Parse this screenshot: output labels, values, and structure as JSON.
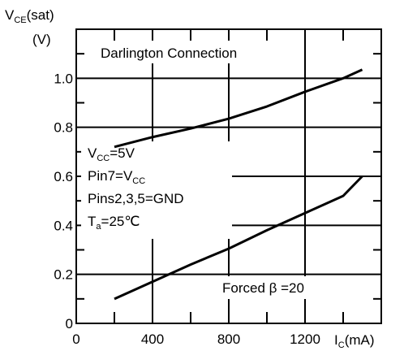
{
  "chart_data": {
    "type": "line",
    "ylabel": {
      "main": "V",
      "sub": "CE",
      "rest": "(sat)"
    },
    "yunit": "(V)",
    "xlabel": {
      "main": "I",
      "sub": "C",
      "rest": "(mA)"
    },
    "x_ticks": [
      "0",
      "400",
      "800",
      "1200"
    ],
    "y_ticks": [
      "0",
      "0.2",
      "0.4",
      "0.6",
      "0.8",
      "1.0"
    ],
    "xlim": [
      0,
      1600
    ],
    "ylim": [
      0,
      1.2
    ],
    "grid": true,
    "series": [
      {
        "x": [
          200,
          400,
          600,
          800,
          1000,
          1200,
          1400,
          1500
        ],
        "y": [
          0.72,
          0.76,
          0.795,
          0.835,
          0.885,
          0.945,
          1.0,
          1.035
        ]
      },
      {
        "x": [
          200,
          400,
          600,
          800,
          1000,
          1200,
          1400,
          1500
        ],
        "y": [
          0.1,
          0.17,
          0.24,
          0.305,
          0.38,
          0.45,
          0.52,
          0.6
        ]
      }
    ],
    "annotations": {
      "title": "Darlington Connection",
      "cond_vcc": {
        "main": "V",
        "sub": "CC",
        "rest": "=5V"
      },
      "cond_pin7": {
        "main": "Pin7=V",
        "sub": "CC"
      },
      "cond_pins": "Pins2,3,5=GND",
      "cond_ta": {
        "main": "T",
        "sub": "a",
        "rest": "=25℃"
      },
      "forced": "Forced β =20"
    }
  }
}
